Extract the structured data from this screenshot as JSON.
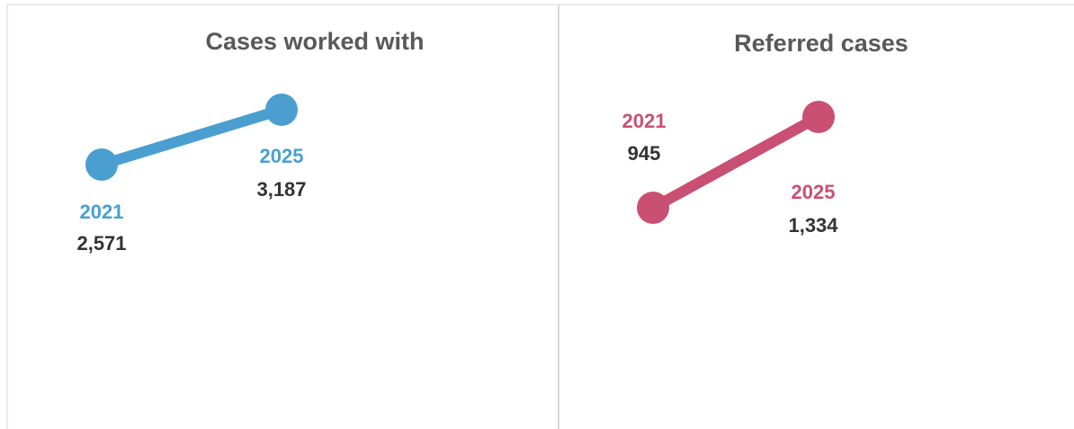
{
  "chart_data": [
    {
      "type": "line",
      "title": "Cases worked with",
      "categories": [
        "2021",
        "2025"
      ],
      "values": [
        2571,
        3187
      ],
      "value_labels": [
        "2,571",
        "3,187"
      ],
      "color": "#4a9fd0"
    },
    {
      "type": "line",
      "title": "Referred cases",
      "categories": [
        "2021",
        "2025"
      ],
      "values": [
        945,
        1334
      ],
      "value_labels": [
        "945",
        "1,334"
      ],
      "color": "#c94f73"
    }
  ]
}
